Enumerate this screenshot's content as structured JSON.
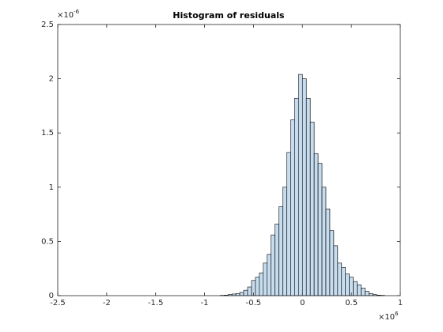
{
  "chart_data": {
    "type": "histogram",
    "title": "Histogram of residuals",
    "bins": [
      -0.84,
      -0.8,
      -0.76,
      -0.72,
      -0.68,
      -0.64,
      -0.6,
      -0.56,
      -0.52,
      -0.48,
      -0.44,
      -0.4,
      -0.36,
      -0.32,
      -0.28,
      -0.24,
      -0.2,
      -0.16,
      -0.12,
      -0.08,
      -0.04,
      0,
      0.04,
      0.08,
      0.12,
      0.16,
      0.2,
      0.24,
      0.28,
      0.32,
      0.36,
      0.4,
      0.44,
      0.48,
      0.52,
      0.56,
      0.6,
      0.64,
      0.68,
      0.72,
      0.76,
      0.8,
      0.84
    ],
    "values": [
      0.003,
      0.005,
      0.01,
      0.015,
      0.02,
      0.03,
      0.05,
      0.08,
      0.14,
      0.17,
      0.21,
      0.3,
      0.38,
      0.56,
      0.66,
      0.82,
      1.0,
      1.32,
      1.62,
      1.82,
      2.04,
      2.0,
      1.82,
      1.6,
      1.31,
      1.22,
      1.0,
      0.8,
      0.6,
      0.46,
      0.3,
      0.26,
      0.2,
      0.17,
      0.13,
      0.1,
      0.07,
      0.04,
      0.02,
      0.01,
      0.005,
      0.003
    ],
    "color": "#c6dcef",
    "edge_color": "#000000",
    "xlim": [
      -2.5,
      1
    ],
    "xticks": [
      -2.5,
      -2,
      -1.5,
      -1,
      -0.5,
      0,
      0.5,
      1
    ],
    "ylim": [
      0,
      2.5
    ],
    "yticks": [
      0,
      0.5,
      1,
      1.5,
      2,
      2.5
    ],
    "x_multiplier": {
      "base": "×10",
      "exponent": "6"
    },
    "y_multiplier": {
      "base": "×10",
      "exponent": "-6"
    }
  }
}
